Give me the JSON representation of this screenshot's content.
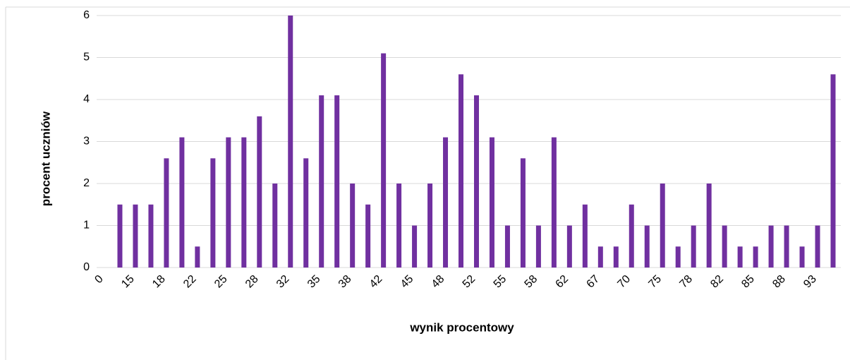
{
  "chart_data": {
    "type": "bar",
    "xlabel": "wynik procentowy",
    "ylabel": "procent uczniów",
    "categories": [
      "0",
      null,
      "15",
      null,
      "18",
      null,
      "22",
      null,
      "25",
      null,
      "28",
      null,
      "32",
      null,
      "35",
      null,
      "38",
      null,
      "42",
      null,
      "45",
      null,
      "48",
      null,
      "52",
      null,
      "55",
      null,
      "58",
      null,
      "62",
      null,
      "67",
      null,
      "70",
      null,
      "75",
      null,
      "78",
      null,
      "82",
      null,
      "85",
      null,
      "88",
      null,
      "93",
      null
    ],
    "values": [
      0,
      1.5,
      1.5,
      1.5,
      2.6,
      3.1,
      0.5,
      2.6,
      3.1,
      3.1,
      3.6,
      2,
      6,
      2.6,
      4.1,
      4.1,
      2,
      1.5,
      5.1,
      2,
      1,
      2,
      3.1,
      4.6,
      4.1,
      3.1,
      1,
      2.6,
      1,
      3.1,
      1,
      1.5,
      0.5,
      0.5,
      1.5,
      1,
      2,
      0.5,
      1,
      2,
      1,
      0.5,
      0.5,
      1,
      1,
      0.5,
      1,
      4.6
    ],
    "color": "#7030a0",
    "ylim": [
      0,
      6
    ],
    "yticks": [
      0,
      1,
      2,
      3,
      4,
      5,
      6
    ],
    "grid": true
  }
}
